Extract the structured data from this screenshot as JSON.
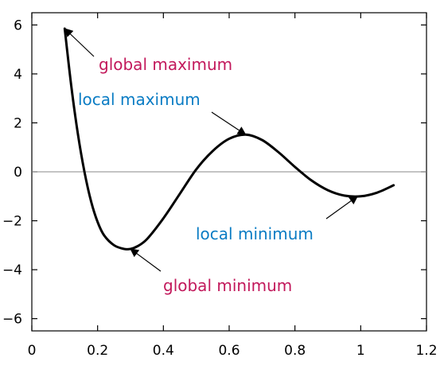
{
  "chart_data": {
    "type": "line",
    "title": "",
    "xlabel": "",
    "ylabel": "",
    "xlim": [
      0,
      1.2
    ],
    "ylim": [
      -6.5,
      6.5
    ],
    "grid": false,
    "legend": "none",
    "x_ticks": [
      0,
      0.2,
      0.4,
      0.6,
      0.8,
      1,
      1.2
    ],
    "x_tick_labels": [
      "0",
      "0.2",
      "0.4",
      "0.6",
      "0.8",
      "1",
      "1.2"
    ],
    "y_ticks": [
      6,
      4,
      2,
      0,
      -2,
      -4,
      -6
    ],
    "y_tick_labels": [
      "6",
      "4",
      "2",
      "0",
      "−2",
      "−4",
      "−6"
    ],
    "reference_line": {
      "y": 0
    },
    "series": [
      {
        "color": "#000000",
        "x": [
          0.1,
          0.12,
          0.14,
          0.16,
          0.18,
          0.2,
          0.22,
          0.25,
          0.28,
          0.3,
          0.32,
          0.35,
          0.4,
          0.45,
          0.5,
          0.55,
          0.6,
          0.65,
          0.7,
          0.75,
          0.8,
          0.85,
          0.9,
          0.95,
          1.0,
          1.05,
          1.1
        ],
        "y": [
          5.85,
          3.5,
          1.55,
          0.0,
          -1.2,
          -2.05,
          -2.6,
          -3.0,
          -3.15,
          -3.15,
          -3.05,
          -2.75,
          -1.9,
          -0.9,
          0.1,
          0.85,
          1.35,
          1.52,
          1.3,
          0.8,
          0.2,
          -0.35,
          -0.75,
          -0.97,
          -1.0,
          -0.85,
          -0.55
        ]
      }
    ],
    "annotations": [
      {
        "text": "global maximum",
        "color": "#c2185b",
        "point": [
          0.1,
          5.85
        ]
      },
      {
        "text": "local maximum",
        "color": "#0a7cc4",
        "point": [
          0.65,
          1.52
        ]
      },
      {
        "text": "local minimum",
        "color": "#0a7cc4",
        "point": [
          0.99,
          -1.0
        ]
      },
      {
        "text": "global minimum",
        "color": "#c2185b",
        "point": [
          0.3,
          -3.15
        ]
      }
    ]
  }
}
